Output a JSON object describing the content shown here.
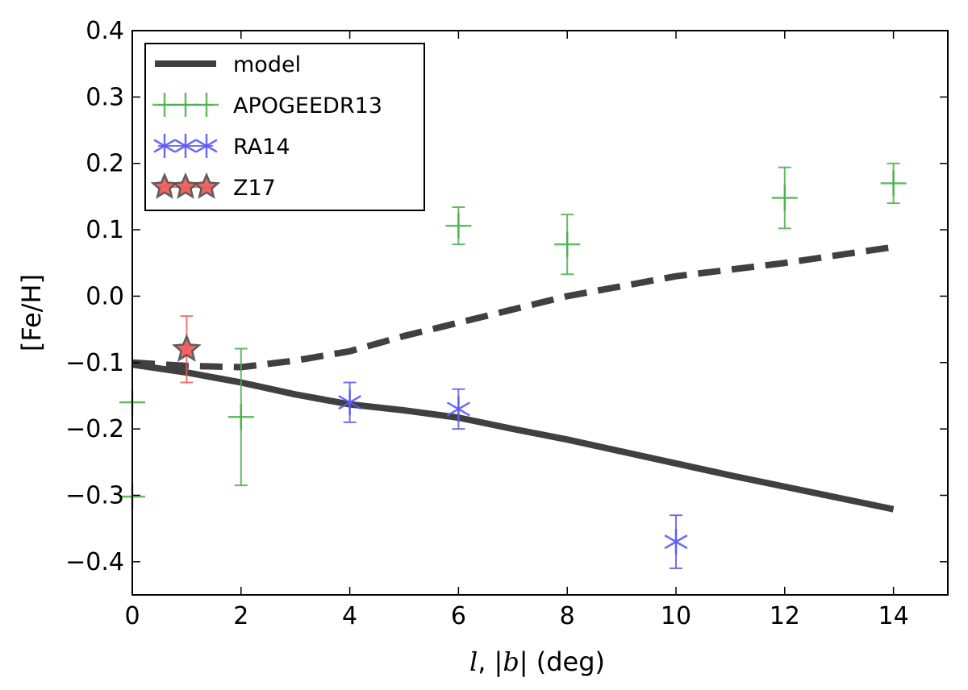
{
  "chart_data": {
    "type": "scatter",
    "title": "",
    "xlabel_prefix": "l",
    "xlabel_mid": ", |",
    "xlabel_b": "b",
    "xlabel_suffix": "| (deg)",
    "ylabel": "[Fe/H]",
    "xlim": [
      0,
      15
    ],
    "ylim": [
      -0.45,
      0.4
    ],
    "xticks": [
      0,
      2,
      4,
      6,
      8,
      10,
      12,
      14
    ],
    "xtick_labels": [
      "0",
      "2",
      "4",
      "6",
      "8",
      "10",
      "12",
      "14"
    ],
    "yticks": [
      -0.4,
      -0.3,
      -0.2,
      -0.1,
      0.0,
      0.1,
      0.2,
      0.3,
      0.4
    ],
    "ytick_labels": [
      "−0.4",
      "−0.3",
      "−0.2",
      "−0.1",
      "0.0",
      "0.1",
      "0.2",
      "0.3",
      "0.4"
    ],
    "grid": false,
    "legend_position": "top-left",
    "series": [
      {
        "name": "model",
        "kind": "line",
        "color": "#404040",
        "x": [
          0,
          1,
          2,
          3,
          4,
          5,
          6,
          7,
          8,
          9,
          10,
          11,
          12,
          13,
          14
        ],
        "y": [
          -0.103,
          -0.115,
          -0.13,
          -0.148,
          -0.163,
          -0.172,
          -0.183,
          -0.2,
          -0.216,
          -0.234,
          -0.252,
          -0.27,
          -0.287,
          -0.304,
          -0.321
        ]
      },
      {
        "name": "",
        "kind": "dashed-line",
        "color": "#404040",
        "x": [
          0,
          1,
          2,
          3,
          4,
          5,
          6,
          7,
          8,
          9,
          10,
          11,
          12,
          13,
          14
        ],
        "y": [
          -0.1,
          -0.105,
          -0.107,
          -0.097,
          -0.083,
          -0.06,
          -0.04,
          -0.02,
          0.0,
          0.015,
          0.03,
          0.04,
          0.05,
          0.062,
          0.074
        ]
      },
      {
        "name": "APOGEEDR13",
        "kind": "errorbar",
        "marker": "plus",
        "color": "#4cae4c",
        "x": [
          0,
          0,
          2,
          6,
          8,
          12,
          14
        ],
        "y": [
          -0.302,
          -0.16,
          -0.182,
          0.106,
          0.078,
          0.148,
          0.17
        ],
        "yerr": [
          0.0,
          0.0,
          0.103,
          0.028,
          0.045,
          0.046,
          0.03
        ]
      },
      {
        "name": "RA14",
        "kind": "errorbar",
        "marker": "asterisk",
        "color": "#5b5bf0",
        "x": [
          4,
          6,
          10
        ],
        "y": [
          -0.16,
          -0.17,
          -0.37
        ],
        "yerr": [
          0.03,
          0.03,
          0.04
        ]
      },
      {
        "name": "Z17",
        "kind": "errorbar",
        "marker": "star",
        "color": "#f05c5c",
        "x": [
          1
        ],
        "y": [
          -0.08
        ],
        "yerr": [
          0.05
        ]
      }
    ]
  }
}
